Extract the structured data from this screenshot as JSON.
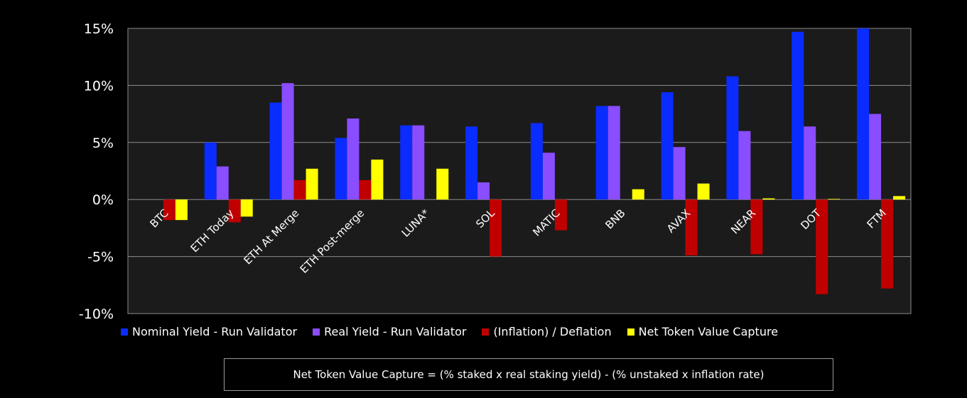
{
  "chart_data": {
    "type": "bar",
    "categories": [
      "BTC",
      "ETH Today",
      "ETH At Merge",
      "ETH Post-merge",
      "LUNA*",
      "SOL",
      "MATIC",
      "BNB",
      "AVAX",
      "NEAR",
      "DOT",
      "FTM"
    ],
    "series": [
      {
        "name": "Nominal Yield - Run Validator",
        "color": "#0a2cff",
        "values": [
          0,
          5.0,
          8.5,
          5.4,
          6.5,
          6.4,
          6.7,
          8.2,
          9.4,
          10.8,
          14.7,
          15.0
        ]
      },
      {
        "name": "Real Yield - Run Validator",
        "color": "#8a4dff",
        "values": [
          0,
          2.9,
          10.2,
          7.1,
          6.5,
          1.5,
          4.1,
          8.2,
          4.6,
          6.0,
          6.4,
          7.5
        ]
      },
      {
        "name": "(Inflation) / Deflation",
        "color": "#c00000",
        "values": [
          -1.8,
          -2.0,
          1.7,
          1.7,
          0,
          -5.0,
          -2.7,
          0,
          -4.9,
          -4.8,
          -8.3,
          -7.8
        ]
      },
      {
        "name": "Net Token Value Capture",
        "color": "#ffff00",
        "values": [
          -1.8,
          -1.5,
          2.7,
          3.5,
          2.7,
          0,
          0,
          0.9,
          1.4,
          0.1,
          0.05,
          0.3
        ]
      }
    ],
    "yticks": [
      "15%",
      "10%",
      "5%",
      "0%",
      "-5%",
      "-10%"
    ],
    "ylim": [
      -10,
      15
    ],
    "grid": true,
    "legend_position": "bottom",
    "plot_background": "#1b1b1b",
    "grid_color": "#8c8c8c"
  },
  "note": "Net Token Value Capture = (% staked x real staking yield) - (% unstaked x inflation rate)"
}
